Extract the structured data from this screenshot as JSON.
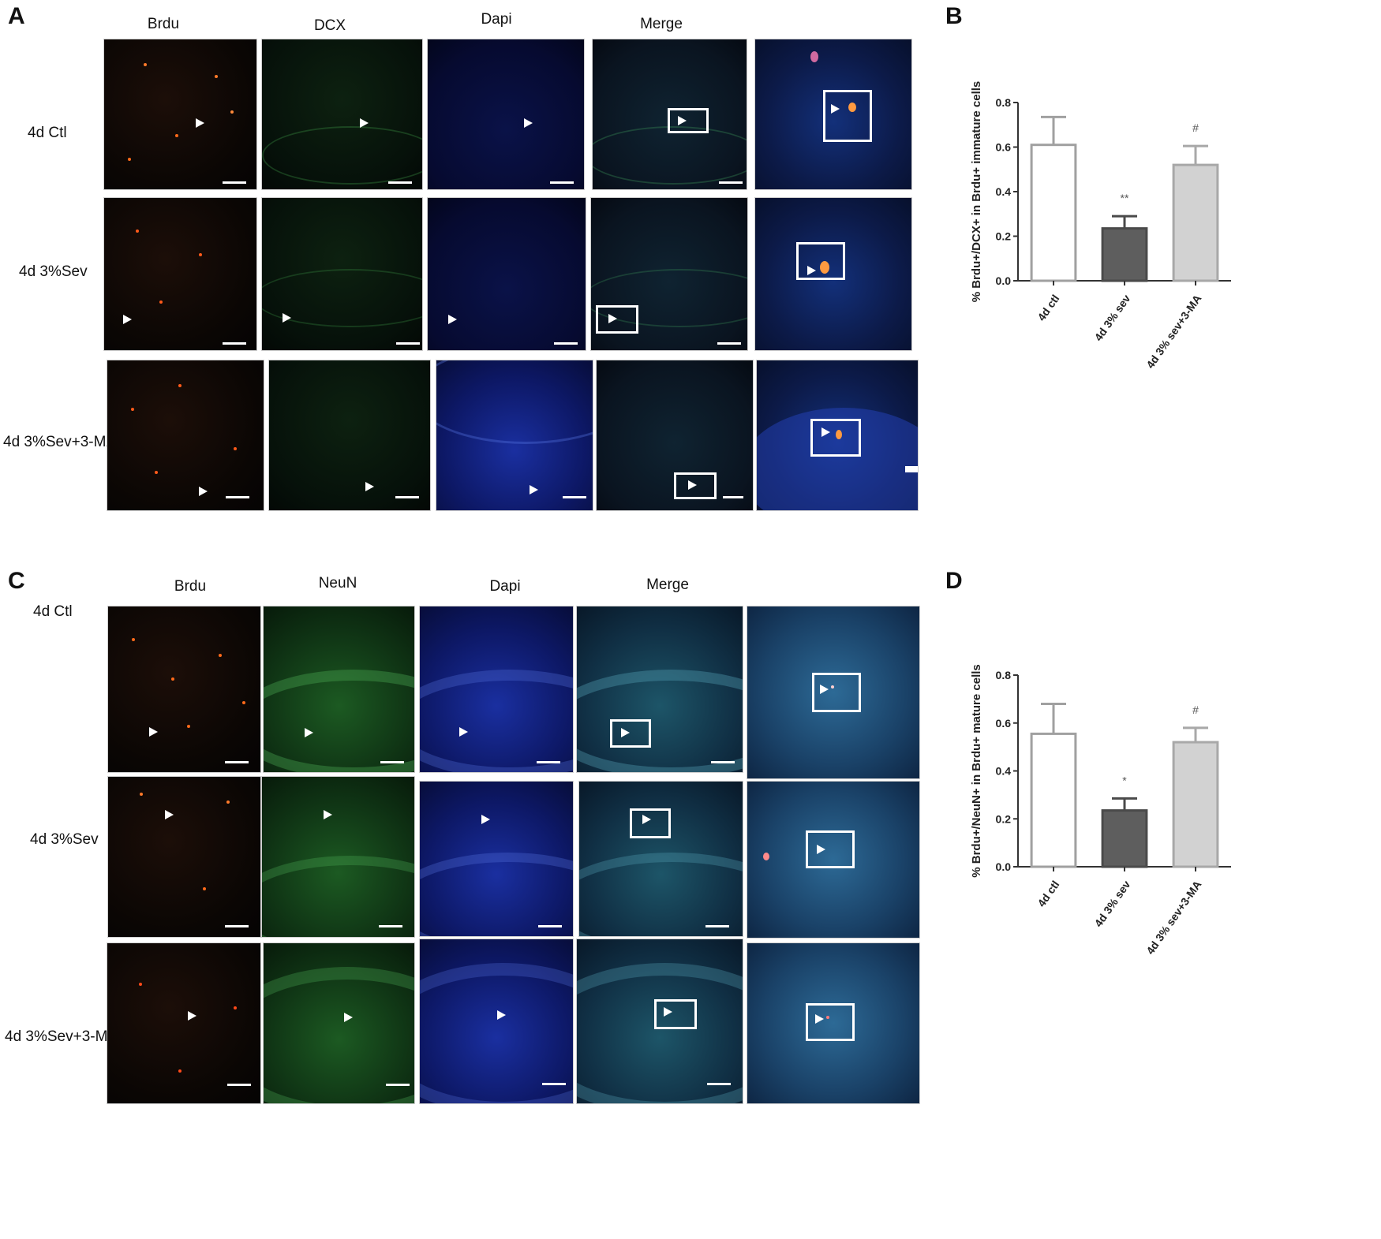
{
  "panel_a": {
    "label": "A",
    "columns": [
      "Brdu",
      "DCX",
      "Dapi",
      "Merge"
    ],
    "rows": [
      "4d Ctl",
      "4d 3%Sev",
      "4d 3%Sev+3-MA"
    ]
  },
  "panel_c": {
    "label": "C",
    "columns": [
      "Brdu",
      "NeuN",
      "Dapi",
      "Merge"
    ],
    "rows": [
      "4d Ctl",
      "4d 3%Sev",
      "4d 3%Sev+3-MA"
    ]
  },
  "colors": {
    "bar_ctl": "#ffffff",
    "bar_sev": "#5e5e5e",
    "bar_sev3ma": "#d2d2d2",
    "bar_stroke_ctl": "#a0a0a0",
    "axis": "#333333"
  },
  "chart_data": [
    {
      "panel": "B",
      "type": "bar",
      "categories": [
        "4d ctl",
        "4d 3% sev",
        "4d 3% sev+3-MA"
      ],
      "values": [
        0.61,
        0.235,
        0.52
      ],
      "errors": [
        0.125,
        0.055,
        0.085
      ],
      "annotations": [
        "",
        "**",
        "#"
      ],
      "ylabel": "% Brdu+/DCX+ in Brdu+ immature cells",
      "ylim": [
        0,
        0.8
      ],
      "yticks": [
        "0.0",
        "0.2",
        "0.4",
        "0.6",
        "0.8"
      ],
      "grid": false
    },
    {
      "panel": "D",
      "type": "bar",
      "categories": [
        "4d ctl",
        "4d 3% sev",
        "4d 3% sev+3-MA"
      ],
      "values": [
        0.555,
        0.235,
        0.52
      ],
      "errors": [
        0.125,
        0.05,
        0.06
      ],
      "annotations": [
        "",
        "*",
        "#"
      ],
      "ylabel": "% Brdu+/NeuN+ in Brdu+ mature cells",
      "ylim": [
        0,
        0.8
      ],
      "yticks": [
        "0.0",
        "0.2",
        "0.4",
        "0.6",
        "0.8"
      ],
      "grid": false
    }
  ]
}
